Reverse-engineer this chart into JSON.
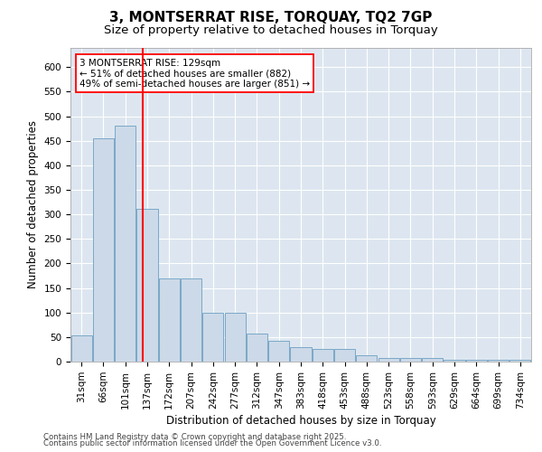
{
  "title": "3, MONTSERRAT RISE, TORQUAY, TQ2 7GP",
  "subtitle": "Size of property relative to detached houses in Torquay",
  "xlabel": "Distribution of detached houses by size in Torquay",
  "ylabel": "Number of detached properties",
  "categories": [
    "31sqm",
    "66sqm",
    "101sqm",
    "137sqm",
    "172sqm",
    "207sqm",
    "242sqm",
    "277sqm",
    "312sqm",
    "347sqm",
    "383sqm",
    "418sqm",
    "453sqm",
    "488sqm",
    "523sqm",
    "558sqm",
    "593sqm",
    "629sqm",
    "664sqm",
    "699sqm",
    "734sqm"
  ],
  "values": [
    53,
    455,
    480,
    312,
    170,
    170,
    100,
    100,
    58,
    42,
    30,
    25,
    25,
    13,
    8,
    8,
    8,
    3,
    3,
    3,
    3
  ],
  "bar_color": "#ccd9e8",
  "bar_edge_color": "#7aa8c8",
  "vline_color": "red",
  "vline_x": 2.78,
  "annotation_text": "3 MONTSERRAT RISE: 129sqm\n← 51% of detached houses are smaller (882)\n49% of semi-detached houses are larger (851) →",
  "annotation_box_color": "white",
  "annotation_box_edge": "red",
  "ylim": [
    0,
    640
  ],
  "yticks": [
    0,
    50,
    100,
    150,
    200,
    250,
    300,
    350,
    400,
    450,
    500,
    550,
    600
  ],
  "title_fontsize": 11,
  "subtitle_fontsize": 9.5,
  "xlabel_fontsize": 8.5,
  "ylabel_fontsize": 8.5,
  "tick_fontsize": 7.5,
  "footer_line1": "Contains HM Land Registry data © Crown copyright and database right 2025.",
  "footer_line2": "Contains public sector information licensed under the Open Government Licence v3.0.",
  "background_color": "#dde6f0",
  "grid_color": "#ffffff"
}
